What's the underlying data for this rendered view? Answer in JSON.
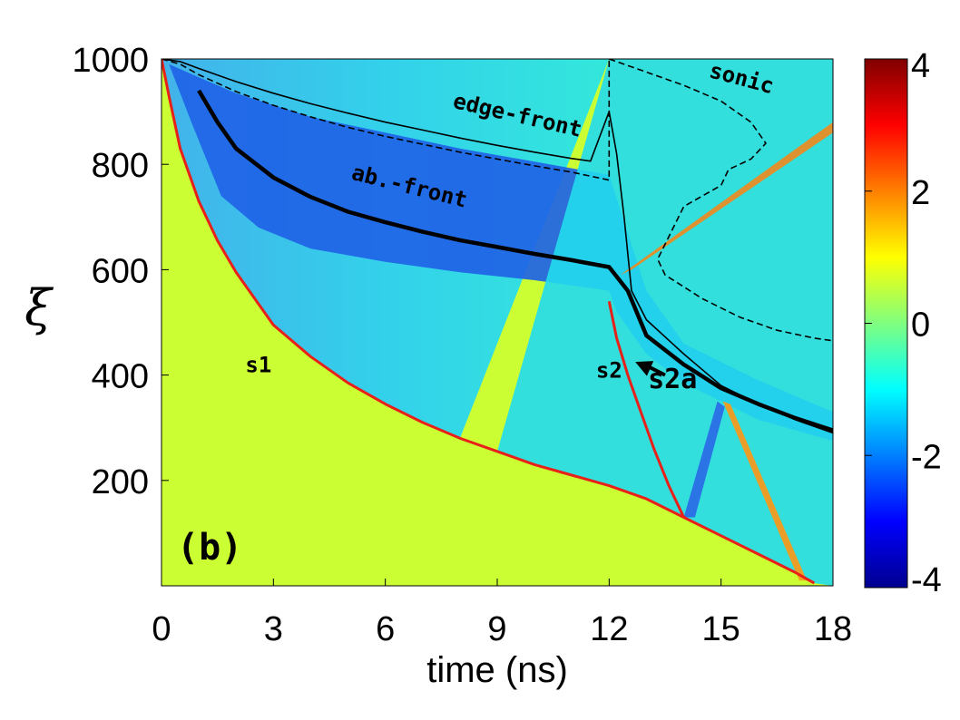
{
  "chart_data": {
    "type": "heatmap",
    "title": "",
    "xlabel": "time (ns)",
    "ylabel": "ξ",
    "xlim": [
      0,
      18
    ],
    "ylim": [
      0,
      1000
    ],
    "xticks": [
      0,
      3,
      6,
      9,
      12,
      15,
      18
    ],
    "yticks": [
      200,
      400,
      600,
      800,
      1000
    ],
    "colorbar": {
      "range": [
        -4,
        4
      ],
      "ticks": [
        -4,
        -2,
        0,
        2,
        4
      ],
      "colormap": "jet"
    },
    "background_value": 0.6,
    "panel_label": "(b)",
    "curves": [
      {
        "name": "edge-front",
        "style": "solid-thin",
        "x": [
          0.0,
          0.5,
          1.0,
          2.0,
          3.0,
          4.0,
          5.0,
          6.0,
          7.0,
          8.0,
          9.0,
          10.0,
          11.0,
          11.5,
          12.0,
          12.2,
          12.4,
          12.6,
          13.0,
          14.0,
          15.0,
          16.0,
          17.0,
          18.0
        ],
        "y": [
          1000,
          995,
          982,
          957,
          935,
          915,
          897,
          880,
          865,
          850,
          836,
          823,
          811,
          806,
          900,
          820,
          700,
          560,
          505,
          440,
          380,
          345,
          315,
          290
        ]
      },
      {
        "name": "edge-front-dashed",
        "style": "dashed-thin",
        "x": [
          0.0,
          0.5,
          1.0,
          2.0,
          3.0,
          4.0,
          5.0,
          6.0,
          7.0,
          8.0,
          9.0,
          10.0,
          11.0,
          12.0,
          12.0
        ],
        "y": [
          1000,
          990,
          970,
          938,
          912,
          890,
          870,
          853,
          838,
          823,
          810,
          797,
          785,
          770,
          1000
        ]
      },
      {
        "name": "sonic",
        "style": "dashed-thin",
        "x": [
          12.0,
          13.0,
          14.0,
          15.0,
          15.8,
          16.2,
          15.8,
          15.2,
          15.0,
          14.0,
          13.3,
          13.5,
          14.5,
          15.5,
          16.5,
          17.5,
          18.0
        ],
        "y": [
          1000,
          975,
          950,
          920,
          880,
          840,
          810,
          790,
          760,
          720,
          620,
          590,
          545,
          510,
          485,
          470,
          465
        ]
      },
      {
        "name": "ab.-front",
        "style": "solid-thick",
        "x": [
          1.0,
          1.5,
          2.0,
          3.0,
          4.0,
          5.0,
          6.0,
          7.0,
          8.0,
          9.0,
          10.0,
          11.0,
          12.0,
          12.5,
          13.0,
          14.0,
          15.0,
          16.0,
          17.0,
          18.0
        ],
        "y": [
          940,
          880,
          830,
          775,
          738,
          710,
          690,
          672,
          656,
          643,
          630,
          618,
          605,
          560,
          475,
          420,
          375,
          345,
          318,
          295
        ]
      },
      {
        "name": "s1",
        "style": "red-ridge",
        "x": [
          0.0,
          0.2,
          0.5,
          1.0,
          1.5,
          2.0,
          3.0,
          4.0,
          5.0,
          6.0,
          7.0,
          8.0,
          9.0,
          10.0,
          11.0,
          12.0,
          13.0,
          14.0,
          15.0,
          16.0,
          17.0,
          17.5
        ],
        "y": [
          1000,
          930,
          830,
          730,
          655,
          595,
          495,
          435,
          385,
          345,
          310,
          280,
          255,
          230,
          210,
          190,
          165,
          130,
          95,
          60,
          25,
          5
        ]
      },
      {
        "name": "s2",
        "style": "red-ridge",
        "x": [
          12.0,
          12.2,
          12.5,
          12.8,
          13.2,
          13.6,
          14.0
        ],
        "y": [
          540,
          470,
          400,
          340,
          260,
          190,
          130
        ]
      }
    ],
    "annotations": [
      {
        "text": "edge-front",
        "x": 9.5,
        "y": 880,
        "rotation": 13
      },
      {
        "text": "ab.-front",
        "x": 6.6,
        "y": 745,
        "rotation": 14
      },
      {
        "text": "sonic",
        "x": 15.5,
        "y": 950,
        "rotation": 15
      },
      {
        "text": "s1",
        "x": 2.6,
        "y": 405
      },
      {
        "text": "s2",
        "x": 12.0,
        "y": 395
      },
      {
        "text": "s2a",
        "x": 13.7,
        "y": 375
      }
    ],
    "arrow": {
      "from": [
        13.5,
        400
      ],
      "to": [
        12.7,
        425
      ]
    }
  }
}
